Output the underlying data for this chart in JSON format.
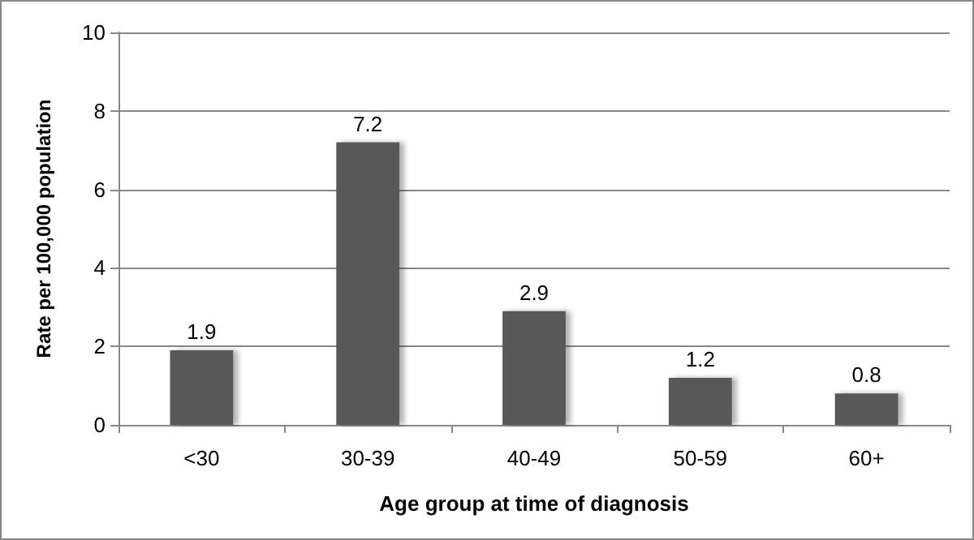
{
  "chart_data": {
    "type": "bar",
    "xlabel": "Age group at time of diagnosis",
    "ylabel": "Rate per 100,000 population",
    "categories": [
      "<30",
      "30-39",
      "40-49",
      "50-59",
      "60+"
    ],
    "values": [
      1.9,
      7.2,
      2.9,
      1.2,
      0.8
    ],
    "color": "#595959",
    "ylim": [
      0,
      10
    ],
    "yticks": [
      0,
      2,
      4,
      6,
      8,
      10
    ],
    "grid": "y",
    "data_labels": true
  }
}
